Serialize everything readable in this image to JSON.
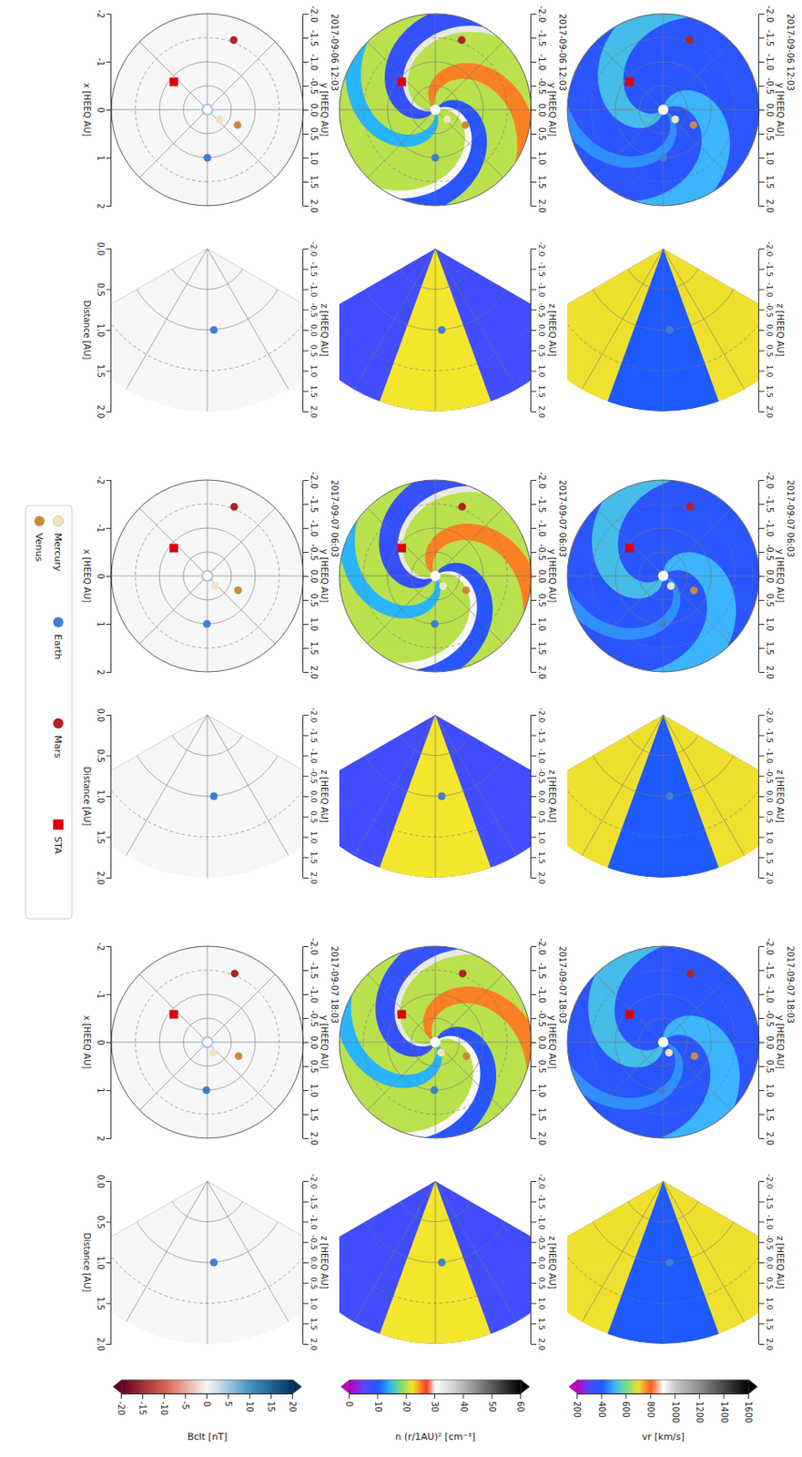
{
  "chart_data": {
    "type": "heliosphere",
    "timestamps": [
      "2017-09-06 12:03",
      "2017-09-07 06:03",
      "2017-09-07 18:03"
    ],
    "ecliptic_axes": {
      "top_label": "y [HEEQ AU]",
      "bottom_label": "x [HEEQ AU]",
      "xlim": [
        -2,
        2
      ],
      "ylim": [
        -2,
        2
      ],
      "top_ticks": [
        {
          "value": -2,
          "label": "-2.0"
        },
        {
          "value": -1.5,
          "label": "-1.5"
        },
        {
          "value": -1,
          "label": "-1.0"
        },
        {
          "value": -0.5,
          "label": "-0.5"
        },
        {
          "value": 0,
          "label": "0.0"
        },
        {
          "value": 0.5,
          "label": "0.5"
        },
        {
          "value": 1,
          "label": "1.0"
        },
        {
          "value": 1.5,
          "label": "1.5"
        },
        {
          "value": 2,
          "label": "2.0"
        }
      ],
      "bottom_ticks": [
        -2,
        -1,
        0,
        1,
        2
      ]
    },
    "meridional_axes": {
      "top_label": "z [HEEQ AU]",
      "bottom_label": "Distance [AU]",
      "zlim": [
        -2,
        2
      ],
      "distance_lim": [
        0,
        2
      ],
      "top_ticks": [
        {
          "value": -2,
          "label": "-2.0"
        },
        {
          "value": -1.5,
          "label": "-1.5"
        },
        {
          "value": -1,
          "label": "-1.0"
        },
        {
          "value": -0.5,
          "label": "-0.5"
        },
        {
          "value": 0,
          "label": "0.0"
        },
        {
          "value": 0.5,
          "label": "0.5"
        },
        {
          "value": 1,
          "label": "1.0"
        },
        {
          "value": 1.5,
          "label": "1.5"
        },
        {
          "value": 2,
          "label": "2.0"
        }
      ],
      "bottom_ticks": [
        {
          "value": 0,
          "label": "0.0"
        },
        {
          "value": 0.5,
          "label": "0.5"
        },
        {
          "value": 1,
          "label": "1.0"
        },
        {
          "value": 1.5,
          "label": "1.5"
        },
        {
          "value": 2,
          "label": "2.0"
        }
      ]
    },
    "quantities": [
      {
        "label": "vr  [km/s]",
        "range": [
          200,
          1600
        ],
        "ticks": [
          200,
          400,
          600,
          800,
          1000,
          1200,
          1400,
          1600
        ]
      },
      {
        "label": "n (r/1AU)² [cm⁻³]",
        "range": [
          0,
          60
        ],
        "ticks": [
          0,
          10,
          20,
          30,
          40,
          50,
          60
        ]
      },
      {
        "label": "Bclt  [nT]",
        "range": [
          -20,
          20
        ],
        "ticks": [
          -20,
          -15,
          -10,
          -5,
          0,
          5,
          10,
          15,
          20
        ]
      }
    ],
    "fields": [
      [
        {
          "background": 370,
          "streams": [
            {
              "longitude": 150,
              "width": 50,
              "value": 500
            },
            {
              "longitude": 330,
              "width": 45,
              "value": 520
            },
            {
              "longitude": 60,
              "width": 20,
              "value": 460
            }
          ],
          "meridional": {
            "equator": 400,
            "high_latitude": 700
          }
        },
        {
          "background": 20,
          "streams": [
            {
              "longitude": 115,
              "width": 14,
              "value": 31
            },
            {
              "longitude": 135,
              "width": 28,
              "value": 9
            },
            {
              "longitude": 290,
              "width": 14,
              "value": 33
            },
            {
              "longitude": 310,
              "width": 34,
              "value": 8
            },
            {
              "longitude": 215,
              "width": 30,
              "value": 25
            },
            {
              "longitude": 20,
              "width": 25,
              "value": 14
            }
          ],
          "meridional": {
            "equator": 22,
            "high_latitude": 7
          }
        },
        {
          "background": 0,
          "streams": [],
          "meridional": {
            "equator": 0,
            "high_latitude": 0
          }
        }
      ],
      [
        {
          "background": 370,
          "streams": [
            {
              "longitude": 160,
              "width": 50,
              "value": 500
            },
            {
              "longitude": 340,
              "width": 45,
              "value": 520
            },
            {
              "longitude": 70,
              "width": 20,
              "value": 460
            }
          ],
          "meridional": {
            "equator": 400,
            "high_latitude": 700
          }
        },
        {
          "background": 20,
          "streams": [
            {
              "longitude": 125,
              "width": 14,
              "value": 31
            },
            {
              "longitude": 145,
              "width": 28,
              "value": 9
            },
            {
              "longitude": 300,
              "width": 14,
              "value": 33
            },
            {
              "longitude": 320,
              "width": 34,
              "value": 8
            },
            {
              "longitude": 225,
              "width": 30,
              "value": 25
            },
            {
              "longitude": 30,
              "width": 25,
              "value": 14
            }
          ],
          "meridional": {
            "equator": 22,
            "high_latitude": 7
          }
        },
        {
          "background": 0,
          "streams": [],
          "meridional": {
            "equator": 0,
            "high_latitude": 0
          }
        }
      ],
      [
        {
          "background": 370,
          "streams": [
            {
              "longitude": 166,
              "width": 50,
              "value": 500
            },
            {
              "longitude": 346,
              "width": 45,
              "value": 520
            },
            {
              "longitude": 76,
              "width": 20,
              "value": 460
            }
          ],
          "meridional": {
            "equator": 400,
            "high_latitude": 700
          }
        },
        {
          "background": 20,
          "streams": [
            {
              "longitude": 131,
              "width": 14,
              "value": 31
            },
            {
              "longitude": 151,
              "width": 28,
              "value": 9
            },
            {
              "longitude": 306,
              "width": 14,
              "value": 33
            },
            {
              "longitude": 326,
              "width": 34,
              "value": 8
            },
            {
              "longitude": 231,
              "width": 30,
              "value": 25
            },
            {
              "longitude": 36,
              "width": 25,
              "value": 14
            }
          ],
          "meridional": {
            "equator": 22,
            "high_latitude": 7
          }
        },
        {
          "background": 0,
          "streams": [],
          "meridional": {
            "equator": 0,
            "high_latitude": 0
          }
        }
      ]
    ],
    "bodies": [
      {
        "name": "Mercury",
        "color": "#f3e3c3",
        "marker": "circle",
        "x": [
          0.2,
          0.21,
          0.22
        ],
        "y": [
          0.25,
          0.16,
          0.12
        ]
      },
      {
        "name": "Venus",
        "color": "#c98a3d",
        "marker": "circle",
        "x": [
          0.32,
          0.3,
          0.29
        ],
        "y": [
          0.63,
          0.64,
          0.65
        ]
      },
      {
        "name": "Earth",
        "color": "#3f7fcf",
        "marker": "circle",
        "x": [
          1,
          1,
          1
        ],
        "y": [
          0,
          -0.01,
          -0.02
        ],
        "distance": [
          1,
          1,
          1
        ],
        "z": [
          0.08,
          0.08,
          0.08
        ]
      },
      {
        "name": "Mars",
        "color": "#b22222",
        "marker": "circle",
        "x": [
          -1.45,
          -1.44,
          -1.43
        ],
        "y": [
          0.55,
          0.56,
          0.57
        ]
      },
      {
        "name": "STA",
        "color": "#dd0000",
        "marker": "square",
        "x": [
          -0.58,
          -0.58,
          -0.58
        ],
        "y": [
          -0.7,
          -0.7,
          -0.7
        ]
      }
    ],
    "legend": "bottom"
  }
}
